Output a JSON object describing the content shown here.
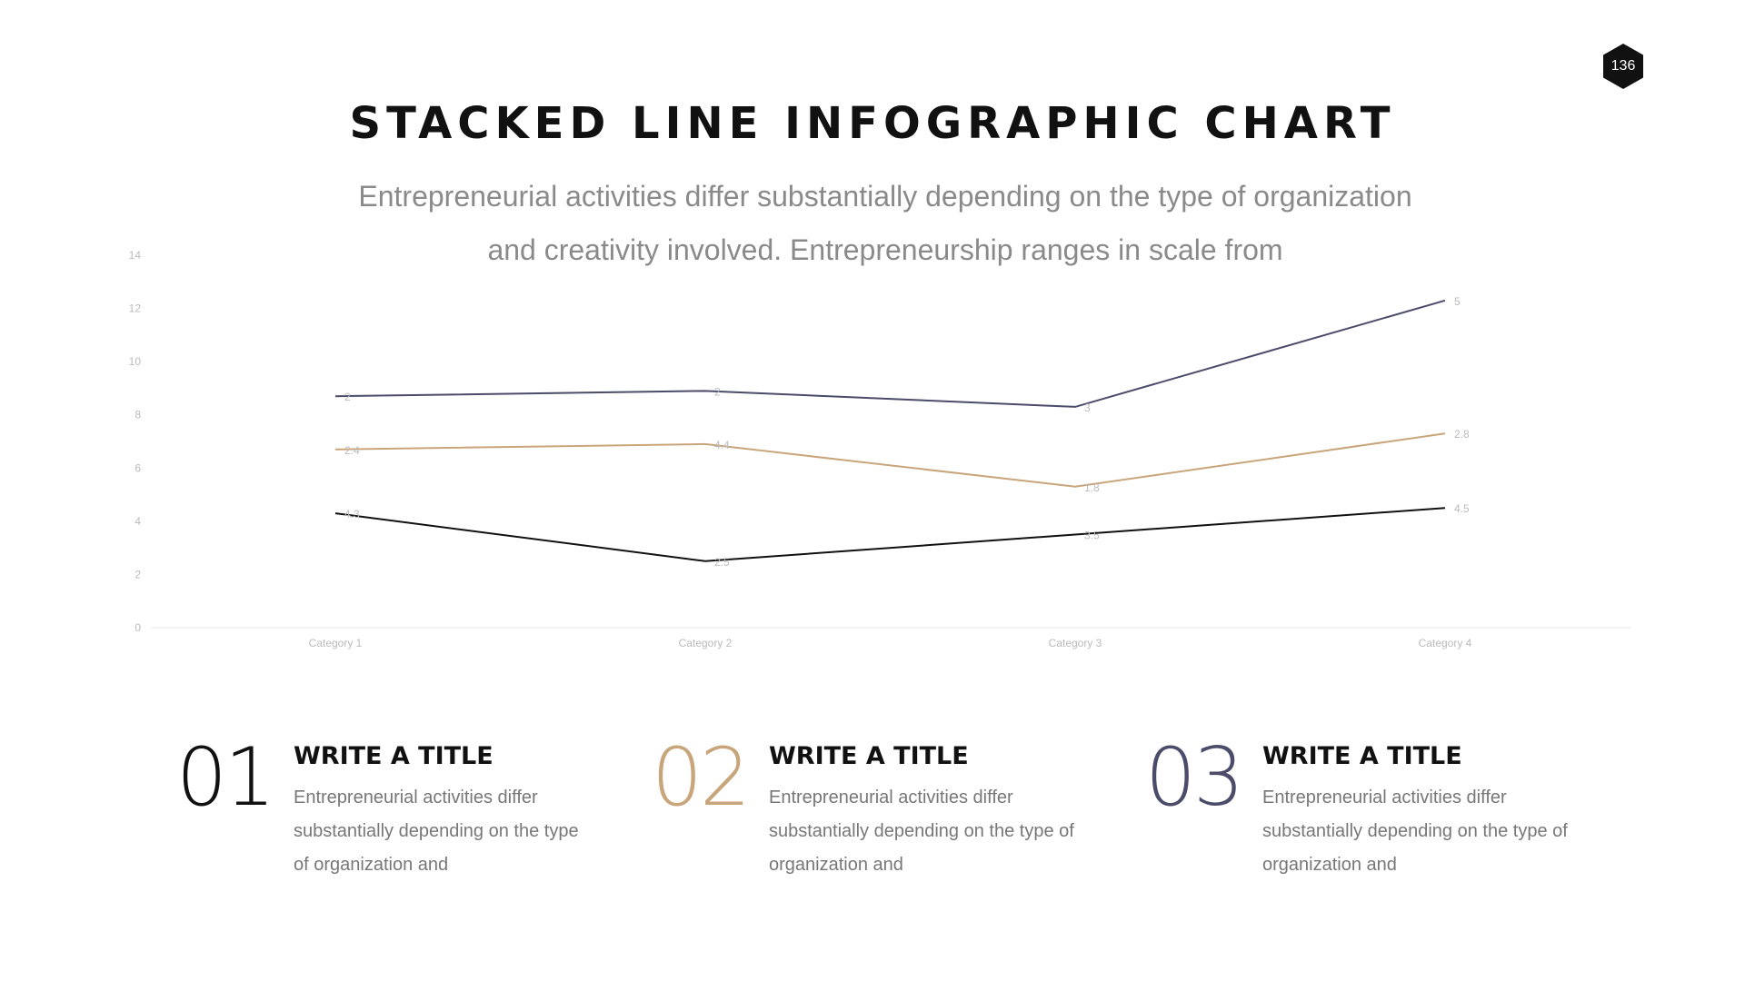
{
  "page_number": "136",
  "title": "STACKED LINE INFOGRAPHIC CHART",
  "subtitle_lines": [
    "Entrepreneurial activities differ substantially depending on the type of organization",
    "and creativity involved. Entrepreneurship ranges in scale from"
  ],
  "chart_data": {
    "type": "stacked-line",
    "categories": [
      "Category 1",
      "Category 2",
      "Category 3",
      "Category 4"
    ],
    "series": [
      {
        "color": "#111111",
        "values": [
          4.3,
          2.5,
          3.5,
          4.5
        ]
      },
      {
        "color": "#c9a57b",
        "values": [
          2.4,
          4.4,
          1.8,
          2.8
        ]
      },
      {
        "color": "#4b4b6a",
        "values": [
          2,
          2,
          3,
          5
        ]
      }
    ],
    "ylim": [
      0,
      14
    ],
    "yticks": [
      0,
      2,
      4,
      6,
      8,
      10,
      12,
      14
    ],
    "grid": false
  },
  "items": [
    {
      "number": "01",
      "color": "#111111",
      "title": "WRITE A TITLE",
      "body": "Entrepreneurial activities differ substantially depending on the type of organization and"
    },
    {
      "number": "02",
      "color": "#c9a57b",
      "title": "WRITE A TITLE",
      "body": "Entrepreneurial activities differ substantially depending on the type of organization and"
    },
    {
      "number": "03",
      "color": "#4b4b6a",
      "title": "WRITE A TITLE",
      "body": "Entrepreneurial activities differ substantially depending on the type of organization and"
    }
  ]
}
